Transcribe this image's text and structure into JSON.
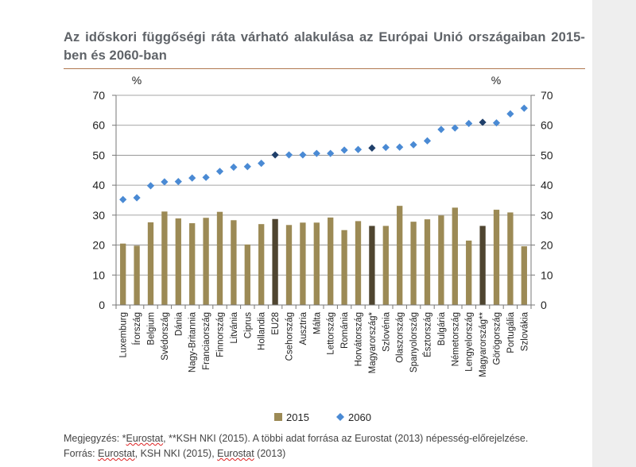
{
  "title": "Az időskori függőségi ráta várható alakulása az Európai Unió országaiban 2015-ben és 2060-ban",
  "notes": {
    "note_prefix": "Megjegyzés: *",
    "note_src1": "Eurostat",
    "note_mid": ", **KSH NKI (2015). A többi adat forrása az Eurostat (2013) népesség-előrejelzése.",
    "source_prefix": "Forrás: ",
    "source_src1": "Eurostat",
    "source_mid": ", KSH NKI (2015), ",
    "source_src2": "Eurostat",
    "source_end": " (2013)"
  },
  "colors": {
    "bar": "#9c8a55",
    "bar_highlight": "#4f4530",
    "marker": "#4a8ad4",
    "marker_highlight": "#1f3f6a",
    "axis_text": "#222222",
    "gridline": "#888888"
  },
  "chart_data": {
    "type": "bar+scatter",
    "ylabel_left": "%",
    "ylabel_right": "%",
    "ylim": [
      0,
      70
    ],
    "yticks": [
      0,
      10,
      20,
      30,
      40,
      50,
      60,
      70
    ],
    "grid": true,
    "legend_position": "bottom",
    "categories": [
      "Luxemburg",
      "Írország",
      "Belgium",
      "Svédország",
      "Dánia",
      "Nagy-Britannia",
      "Franciaország",
      "Finnország",
      "Litvánia",
      "Ciprus",
      "Hollandia",
      "EU28",
      "Csehország",
      "Ausztria",
      "Málta",
      "Lettország",
      "Románia",
      "Horvátország",
      "Magyarország*",
      "Szlovénia",
      "Olaszország",
      "Spanyolország",
      "Észtország",
      "Bulgária",
      "Németország",
      "Lengyelország",
      "Magyarország**",
      "Görögország",
      "Portugália",
      "Szlovákia"
    ],
    "highlight": [
      "EU28",
      "Magyarország*",
      "Magyarország**"
    ],
    "series": [
      {
        "name": "2015",
        "kind": "bar",
        "values": [
          20.5,
          19.8,
          27.6,
          31.2,
          28.9,
          27.3,
          29.1,
          31.1,
          28.3,
          20.2,
          27.0,
          28.7,
          26.7,
          27.5,
          27.5,
          29.2,
          25.0,
          28.0,
          26.4,
          26.4,
          33.1,
          27.8,
          28.6,
          29.9,
          32.5,
          21.5,
          26.4,
          31.8,
          30.9,
          19.6
        ]
      },
      {
        "name": "2060",
        "kind": "marker",
        "values": [
          35.2,
          35.8,
          39.8,
          41.1,
          41.2,
          42.4,
          42.6,
          44.6,
          46.0,
          46.2,
          47.3,
          50.1,
          50.1,
          50.1,
          50.6,
          50.6,
          51.7,
          51.9,
          52.4,
          52.6,
          52.7,
          53.5,
          54.8,
          58.6,
          59.1,
          60.6,
          61.0,
          60.8,
          63.8,
          65.7
        ]
      }
    ]
  }
}
